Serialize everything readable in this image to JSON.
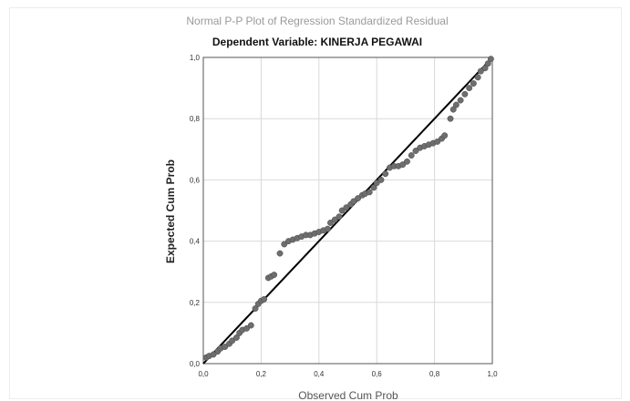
{
  "chart_data": {
    "type": "scatter",
    "title": "Normal P-P Plot of Regression Standardized Residual",
    "subtitle": "Dependent Variable: KINERJA PEGAWAI",
    "xlabel": "Observed Cum Prob",
    "ylabel": "Expected Cum Prob",
    "xlim": [
      0,
      1
    ],
    "ylim": [
      0,
      1
    ],
    "x_ticks": [
      "0,0",
      "0,2",
      "0,4",
      "0,6",
      "0,8",
      "1,0"
    ],
    "y_ticks": [
      "0,0",
      "0,2",
      "0,4",
      "0,6",
      "0,8",
      "1,0"
    ],
    "grid": true,
    "reference_line": [
      [
        0,
        0
      ],
      [
        1,
        1
      ]
    ],
    "colors": {
      "points": "#6e6e6e",
      "line": "#000000",
      "grid": "#d9d9d9",
      "axis": "#555555"
    },
    "points": [
      [
        0.01,
        0.02
      ],
      [
        0.02,
        0.025
      ],
      [
        0.035,
        0.03
      ],
      [
        0.05,
        0.04
      ],
      [
        0.06,
        0.05
      ],
      [
        0.075,
        0.055
      ],
      [
        0.09,
        0.065
      ],
      [
        0.1,
        0.075
      ],
      [
        0.115,
        0.085
      ],
      [
        0.125,
        0.1
      ],
      [
        0.135,
        0.11
      ],
      [
        0.15,
        0.115
      ],
      [
        0.165,
        0.125
      ],
      [
        0.18,
        0.18
      ],
      [
        0.19,
        0.195
      ],
      [
        0.2,
        0.205
      ],
      [
        0.21,
        0.21
      ],
      [
        0.225,
        0.28
      ],
      [
        0.235,
        0.285
      ],
      [
        0.245,
        0.29
      ],
      [
        0.265,
        0.36
      ],
      [
        0.28,
        0.39
      ],
      [
        0.295,
        0.4
      ],
      [
        0.31,
        0.405
      ],
      [
        0.325,
        0.41
      ],
      [
        0.34,
        0.415
      ],
      [
        0.355,
        0.42
      ],
      [
        0.37,
        0.42
      ],
      [
        0.385,
        0.425
      ],
      [
        0.4,
        0.43
      ],
      [
        0.415,
        0.435
      ],
      [
        0.43,
        0.44
      ],
      [
        0.44,
        0.46
      ],
      [
        0.455,
        0.47
      ],
      [
        0.47,
        0.48
      ],
      [
        0.48,
        0.5
      ],
      [
        0.495,
        0.51
      ],
      [
        0.51,
        0.52
      ],
      [
        0.52,
        0.53
      ],
      [
        0.535,
        0.54
      ],
      [
        0.55,
        0.55
      ],
      [
        0.56,
        0.555
      ],
      [
        0.575,
        0.56
      ],
      [
        0.59,
        0.575
      ],
      [
        0.6,
        0.59
      ],
      [
        0.615,
        0.6
      ],
      [
        0.63,
        0.62
      ],
      [
        0.645,
        0.64
      ],
      [
        0.66,
        0.645
      ],
      [
        0.675,
        0.645
      ],
      [
        0.69,
        0.65
      ],
      [
        0.705,
        0.66
      ],
      [
        0.72,
        0.68
      ],
      [
        0.735,
        0.695
      ],
      [
        0.75,
        0.705
      ],
      [
        0.765,
        0.71
      ],
      [
        0.78,
        0.715
      ],
      [
        0.795,
        0.72
      ],
      [
        0.81,
        0.725
      ],
      [
        0.825,
        0.735
      ],
      [
        0.835,
        0.745
      ],
      [
        0.855,
        0.8
      ],
      [
        0.865,
        0.83
      ],
      [
        0.875,
        0.845
      ],
      [
        0.89,
        0.86
      ],
      [
        0.905,
        0.88
      ],
      [
        0.92,
        0.9
      ],
      [
        0.935,
        0.915
      ],
      [
        0.95,
        0.935
      ],
      [
        0.96,
        0.955
      ],
      [
        0.975,
        0.965
      ],
      [
        0.985,
        0.98
      ],
      [
        0.995,
        0.995
      ]
    ]
  }
}
